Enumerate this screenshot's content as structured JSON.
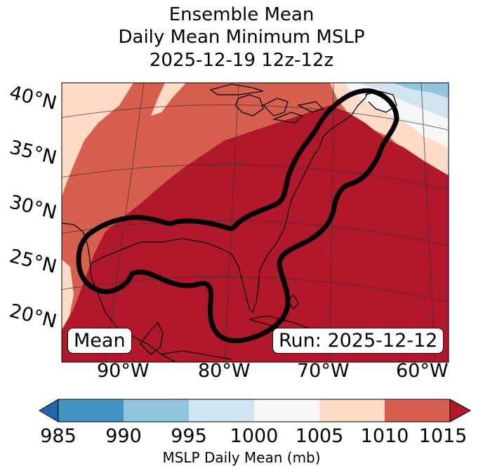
{
  "title": {
    "line1": "Ensemble Mean",
    "line2": "Daily Mean Minimum MSLP",
    "line3": "2025-12-19 12z-12z"
  },
  "map": {
    "lat_labels": [
      "40°N",
      "35°N",
      "30°N",
      "25°N",
      "20°N"
    ],
    "lon_labels": [
      "90°W",
      "80°W",
      "70°W",
      "60°W"
    ],
    "mean_label": "Mean",
    "run_label": "Run: 2025-12-12",
    "contour_level": "1015 mb"
  },
  "colorbar": {
    "label": "MSLP Daily Mean (mb)",
    "ticks": [
      "985",
      "990",
      "995",
      "1000",
      "1005",
      "1010",
      "1015"
    ],
    "colors": {
      "below_985": "#2166ac",
      "985_990": "#4393c3",
      "990_995": "#92c5de",
      "995_1000": "#d1e5f0",
      "1000_1005": "#f7f7f7",
      "1005_1010": "#fddbc7",
      "1010_1015": "#d6604d",
      "above_1015": "#b2182b"
    }
  }
}
